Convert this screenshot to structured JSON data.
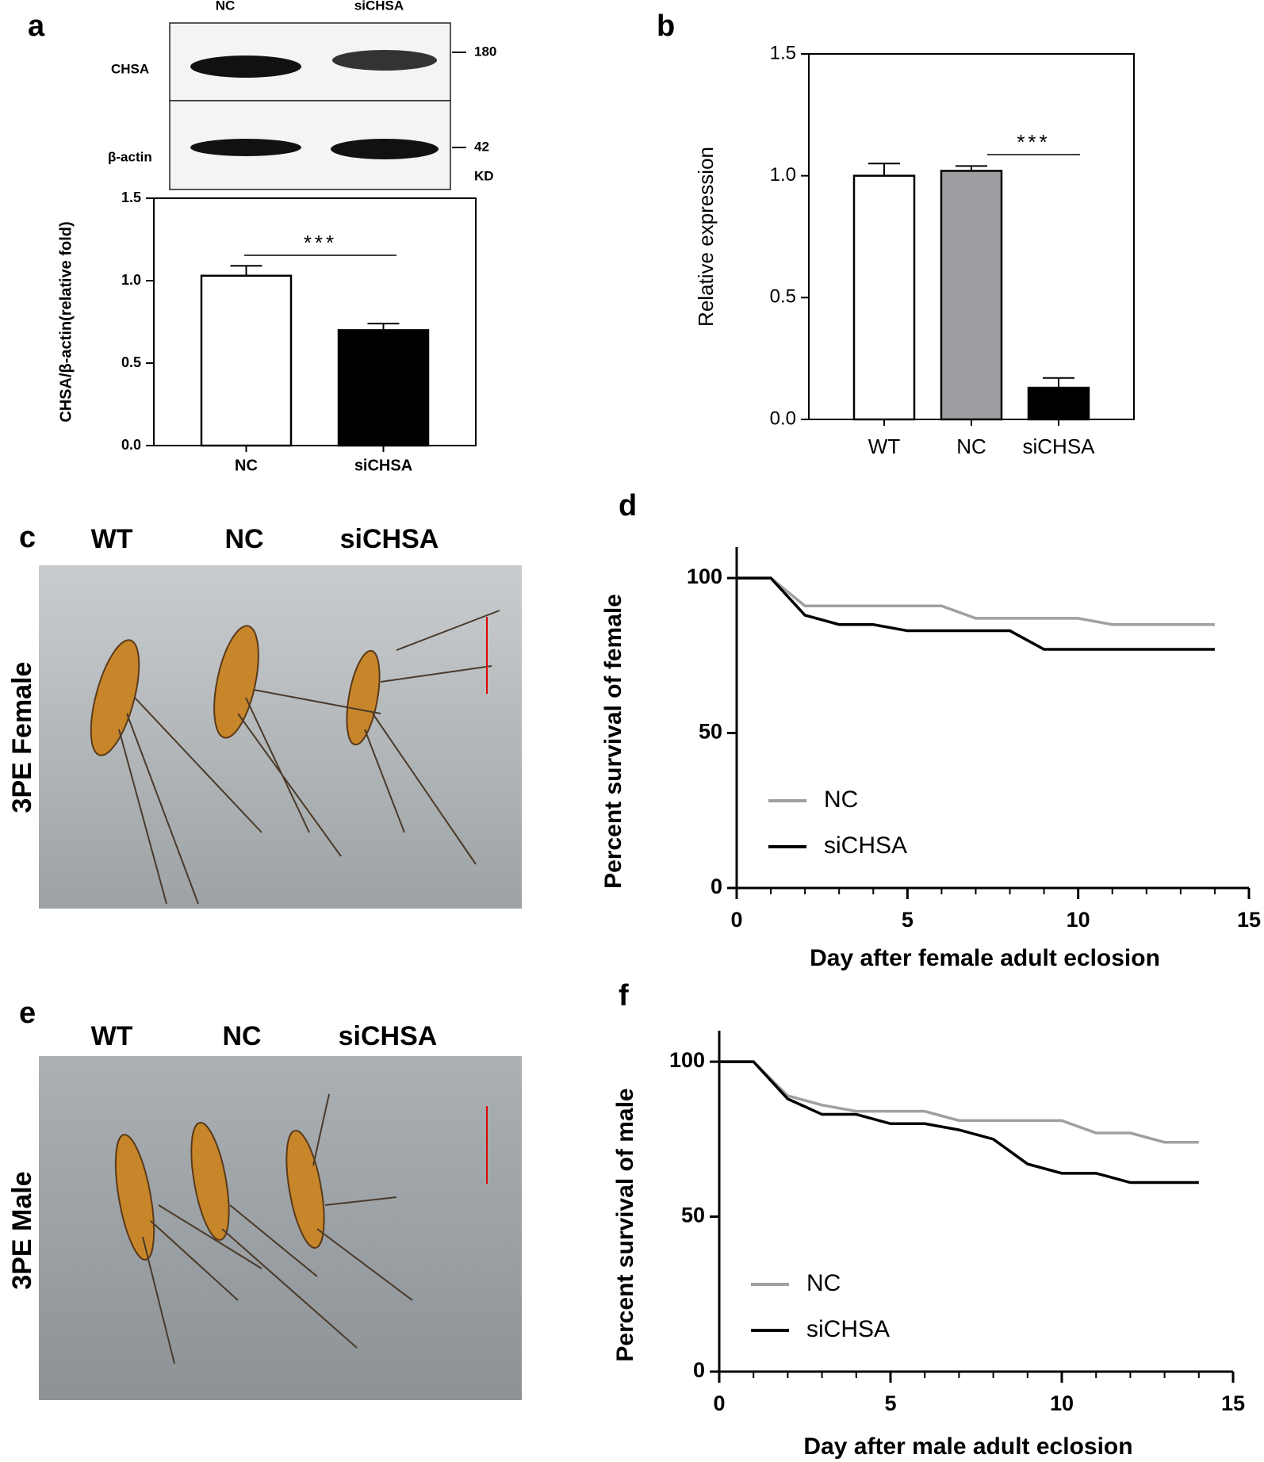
{
  "chart_data": [
    {
      "type": "bar",
      "panel": "a",
      "categories": [
        "NC",
        "siCHSA"
      ],
      "values": [
        1.03,
        0.7
      ],
      "errors": [
        0.06,
        0.04
      ],
      "colors": [
        "#ffffff",
        "#000000"
      ],
      "ylabel": "CHSA/β-actin(relative fold)",
      "annotation": "***",
      "ylim": [
        0,
        1.5
      ],
      "yticks": [
        {
          "value": 0,
          "label": "0.0"
        },
        0.5,
        {
          "value": 1,
          "label": "1.0"
        },
        1.5
      ]
    },
    {
      "type": "bar",
      "panel": "b",
      "categories": [
        "WT",
        "NC",
        "siCHSA"
      ],
      "values": [
        1.0,
        1.02,
        0.13
      ],
      "errors": [
        0.05,
        0.02,
        0.04
      ],
      "colors": [
        "#ffffff",
        "#9e9ea2",
        "#000000"
      ],
      "ylabel": "Relative expression",
      "annotation": "***",
      "ylim": [
        0,
        1.5
      ],
      "yticks": [
        {
          "value": 0,
          "label": "0.0"
        },
        0.5,
        {
          "value": 1,
          "label": "1.0"
        },
        1.5
      ]
    },
    {
      "type": "line",
      "panel": "d",
      "xlabel": "Day after female adult eclosion",
      "ylabel": "Percent survival  of female",
      "x": [
        0,
        1,
        2,
        3,
        4,
        5,
        6,
        7,
        8,
        9,
        10,
        11,
        12,
        13,
        14
      ],
      "series": [
        {
          "name": "NC",
          "color": "#a0a0a0",
          "values": [
            100,
            100,
            91,
            91,
            91,
            91,
            91,
            87,
            87,
            87,
            87,
            85,
            85,
            85,
            85
          ]
        },
        {
          "name": "siCHSA",
          "color": "#000000",
          "values": [
            100,
            100,
            88,
            85,
            85,
            83,
            83,
            83,
            83,
            77,
            77,
            77,
            77,
            77,
            77
          ]
        }
      ],
      "xlim": [
        0,
        15
      ],
      "xticks": [
        0,
        5,
        10,
        15
      ],
      "ylim": [
        0,
        110
      ],
      "yticks": [
        0,
        50,
        100
      ],
      "legend": "lower left"
    },
    {
      "type": "line",
      "panel": "f",
      "xlabel": "Day after male adult eclosion",
      "ylabel": "Percent survival  of male",
      "x": [
        0,
        1,
        2,
        3,
        4,
        5,
        6,
        7,
        8,
        9,
        10,
        11,
        12,
        13,
        14
      ],
      "series": [
        {
          "name": "NC",
          "color": "#a0a0a0",
          "values": [
            100,
            100,
            89,
            86,
            84,
            84,
            84,
            81,
            81,
            81,
            81,
            77,
            77,
            74,
            74
          ]
        },
        {
          "name": "siCHSA",
          "color": "#000000",
          "values": [
            100,
            100,
            88,
            83,
            83,
            80,
            80,
            78,
            75,
            67,
            64,
            64,
            61,
            61,
            61
          ]
        }
      ],
      "xlim": [
        0,
        15
      ],
      "xticks": [
        0,
        5,
        10,
        15
      ],
      "ylim": [
        0,
        110
      ],
      "yticks": [
        0,
        50,
        100
      ],
      "legend": "lower left"
    }
  ],
  "blot": {
    "lanes": [
      "NC",
      "siCHSA"
    ],
    "rows": [
      "CHSA",
      "β-actin"
    ],
    "markers": [
      "180",
      "42"
    ],
    "unit": "KD"
  },
  "photos": [
    {
      "panel": "c",
      "labels": [
        "WT",
        "NC",
        "siCHSA"
      ],
      "side_label": "3PE Female"
    },
    {
      "panel": "e",
      "labels": [
        "WT",
        "NC",
        "siCHSA"
      ],
      "side_label": "3PE Male"
    }
  ]
}
